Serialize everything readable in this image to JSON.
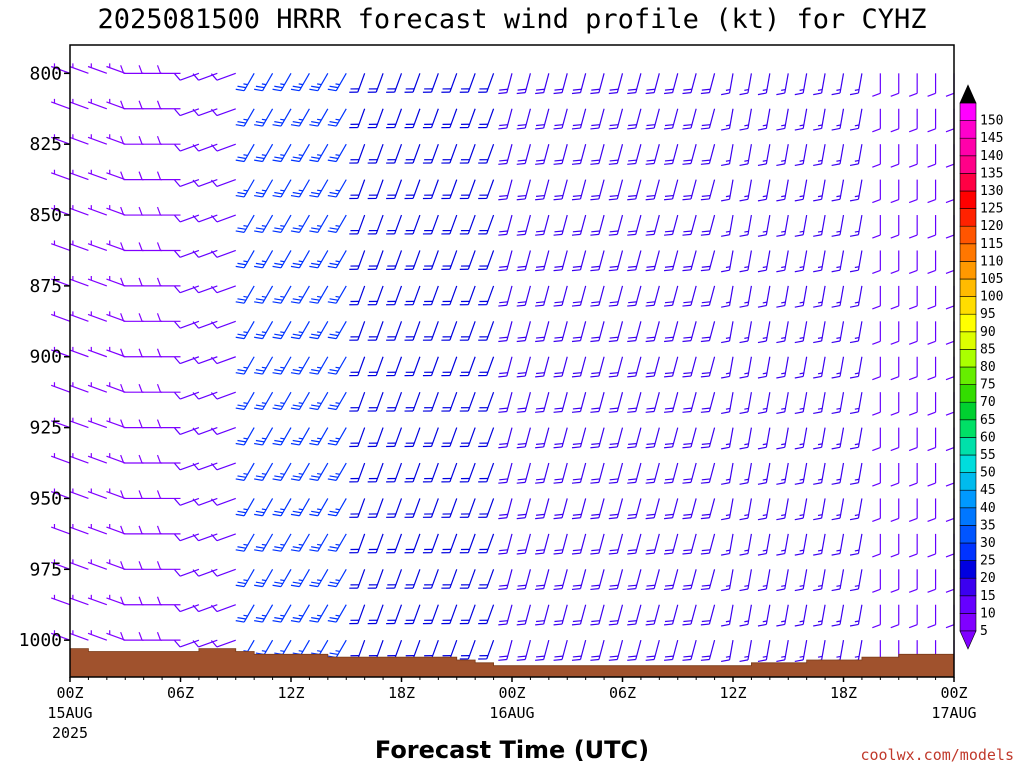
{
  "title": "2025081500 HRRR forecast wind profile (kt) for CYHZ",
  "credit": "coolwx.com/models",
  "chart_data": {
    "type": "wind-barb-profile",
    "title": "2025081500 HRRR forecast wind profile (kt) for CYHZ",
    "xlabel": "Forecast Time (UTC)",
    "ylabel": "",
    "x_range_hours": [
      0,
      48
    ],
    "y_range_hpa": [
      790,
      1013
    ],
    "y_ticks": [
      800,
      825,
      850,
      875,
      900,
      925,
      950,
      975,
      1000
    ],
    "y_tick_labels": [
      "800",
      "825",
      "850",
      "875",
      "900",
      "925",
      "950",
      "975",
      "1000"
    ],
    "x_ticks": [
      {
        "hour": 0,
        "label": "00Z",
        "date": "15AUG",
        "year": "2025"
      },
      {
        "hour": 6,
        "label": "06Z",
        "date": "",
        "year": ""
      },
      {
        "hour": 12,
        "label": "12Z",
        "date": "",
        "year": ""
      },
      {
        "hour": 18,
        "label": "18Z",
        "date": "",
        "year": ""
      },
      {
        "hour": 24,
        "label": "00Z",
        "date": "16AUG",
        "year": ""
      },
      {
        "hour": 30,
        "label": "06Z",
        "date": "",
        "year": ""
      },
      {
        "hour": 36,
        "label": "12Z",
        "date": "",
        "year": ""
      },
      {
        "hour": 42,
        "label": "18Z",
        "date": "",
        "year": ""
      },
      {
        "hour": 48,
        "label": "00Z",
        "date": "17AUG",
        "year": ""
      }
    ],
    "surface_pressure_hpa": [
      {
        "h": 0,
        "p": 1003
      },
      {
        "h": 1,
        "p": 1004
      },
      {
        "h": 6,
        "p": 1004
      },
      {
        "h": 7,
        "p": 1003
      },
      {
        "h": 9,
        "p": 1004
      },
      {
        "h": 10,
        "p": 1005
      },
      {
        "h": 14,
        "p": 1006
      },
      {
        "h": 20,
        "p": 1006
      },
      {
        "h": 21,
        "p": 1007
      },
      {
        "h": 22,
        "p": 1008
      },
      {
        "h": 23,
        "p": 1009
      },
      {
        "h": 37,
        "p": 1008
      },
      {
        "h": 40,
        "p": 1007
      },
      {
        "h": 43,
        "p": 1006
      },
      {
        "h": 45,
        "p": 1005
      },
      {
        "h": 48,
        "p": 1006
      }
    ],
    "barb_levels_hpa": [
      800,
      812.5,
      825,
      837.5,
      850,
      862.5,
      875,
      887.5,
      900,
      912.5,
      925,
      937.5,
      950,
      962.5,
      975,
      987.5,
      1000
    ],
    "wind_regimes": [
      {
        "hours": [
          0,
          3
        ],
        "dir_deg": 290,
        "speed_kt": 7
      },
      {
        "hours": [
          4,
          6
        ],
        "dir_deg": 270,
        "speed_kt": 8
      },
      {
        "hours": [
          7,
          9
        ],
        "dir_deg": 250,
        "speed_kt": 12
      },
      {
        "hours": [
          10,
          15
        ],
        "dir_deg": 210,
        "speed_kt": 25
      },
      {
        "hours": [
          16,
          23
        ],
        "dir_deg": 200,
        "speed_kt": 20
      },
      {
        "hours": [
          24,
          35
        ],
        "dir_deg": 195,
        "speed_kt": 18
      },
      {
        "hours": [
          36,
          43
        ],
        "dir_deg": 190,
        "speed_kt": 15
      },
      {
        "hours": [
          44,
          48
        ],
        "dir_deg": 180,
        "speed_kt": 10
      }
    ],
    "colorbar": {
      "min": 5,
      "max": 150,
      "step": 5,
      "labels": [
        "5",
        "10",
        "15",
        "20",
        "25",
        "30",
        "35",
        "40",
        "45",
        "50",
        "55",
        "60",
        "65",
        "70",
        "75",
        "80",
        "85",
        "90",
        "95",
        "100",
        "105",
        "110",
        "115",
        "120",
        "125",
        "130",
        "135",
        "140",
        "145",
        "150"
      ],
      "colors": [
        "#8000ff",
        "#6600ff",
        "#3b00f0",
        "#0000e0",
        "#0033ff",
        "#0055ff",
        "#0077ff",
        "#0099ff",
        "#00bbee",
        "#00dddd",
        "#00e0aa",
        "#00e066",
        "#00d030",
        "#33dd00",
        "#66ee00",
        "#aaff00",
        "#ddff00",
        "#ffff00",
        "#ffdd00",
        "#ffbb00",
        "#ff9900",
        "#ff7700",
        "#ff5500",
        "#ff2200",
        "#ff0000",
        "#ff0044",
        "#ff0088",
        "#ff00aa",
        "#ff00cc",
        "#ff00ff"
      ],
      "arrow_low_color": "#8000ff",
      "arrow_high_color": "#000000"
    },
    "terrain_color": "#a0522d"
  }
}
